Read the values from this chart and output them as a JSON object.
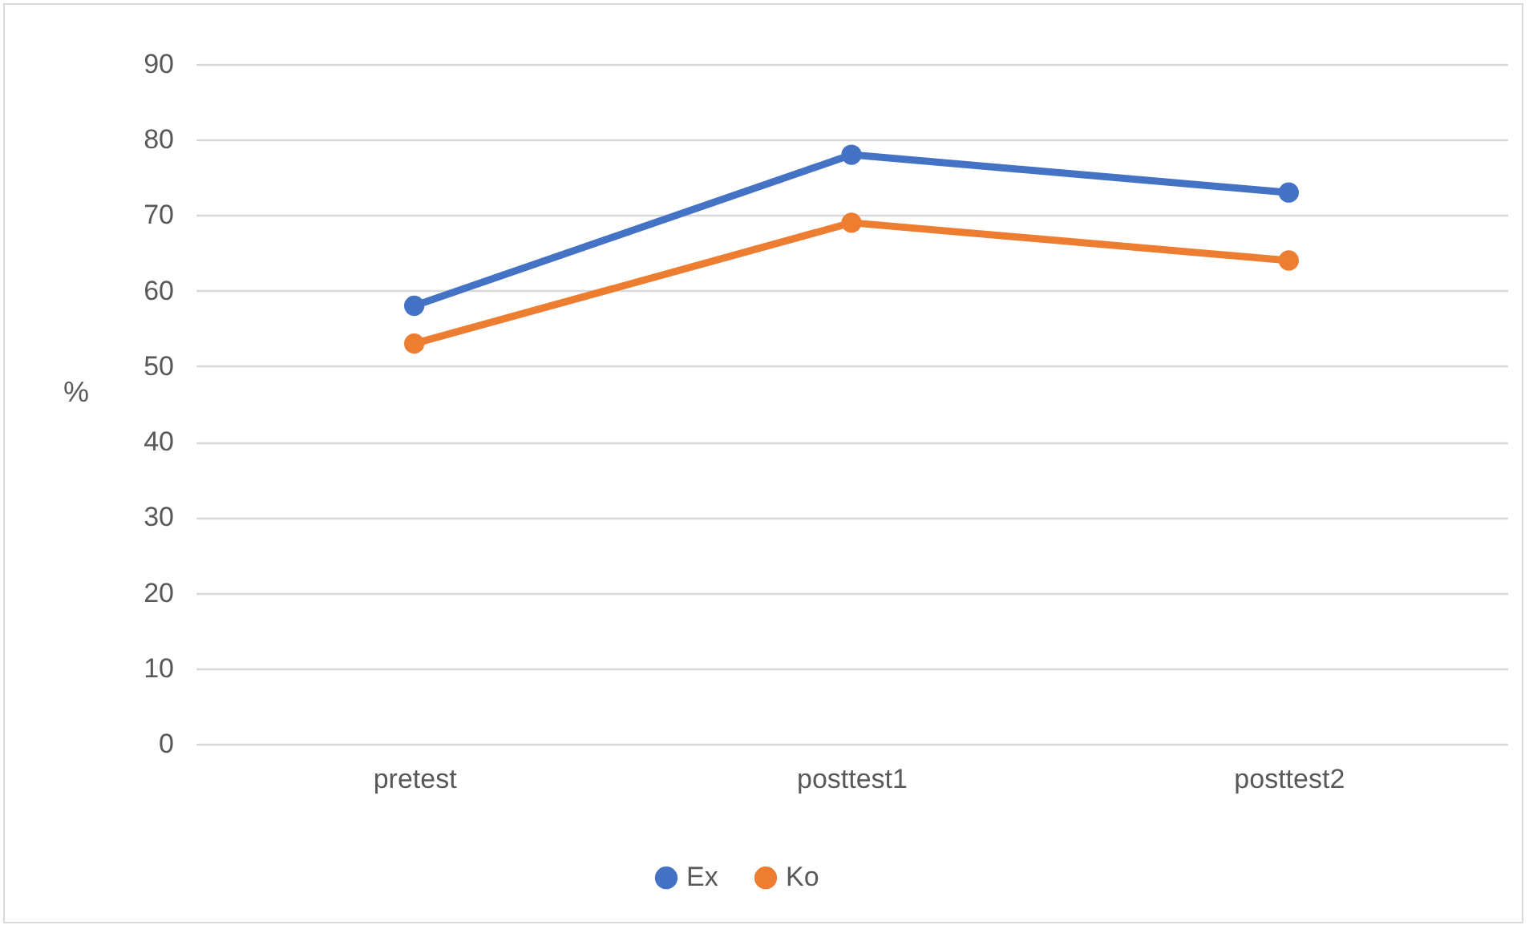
{
  "chart_data": {
    "type": "line",
    "ylabel": "%",
    "categories": [
      "pretest",
      "posttest1",
      "posttest2"
    ],
    "series": [
      {
        "name": "Ex",
        "color": "#4472c4",
        "values": [
          58,
          78,
          73
        ]
      },
      {
        "name": "Ko",
        "color": "#ed7d31",
        "values": [
          53,
          69,
          64
        ]
      }
    ],
    "ylim": [
      0,
      90
    ],
    "yticks": [
      0,
      10,
      20,
      30,
      40,
      50,
      60,
      70,
      80,
      90
    ],
    "grid": "y",
    "legend": "bottom",
    "marker": "circle",
    "line_style": "solid"
  }
}
